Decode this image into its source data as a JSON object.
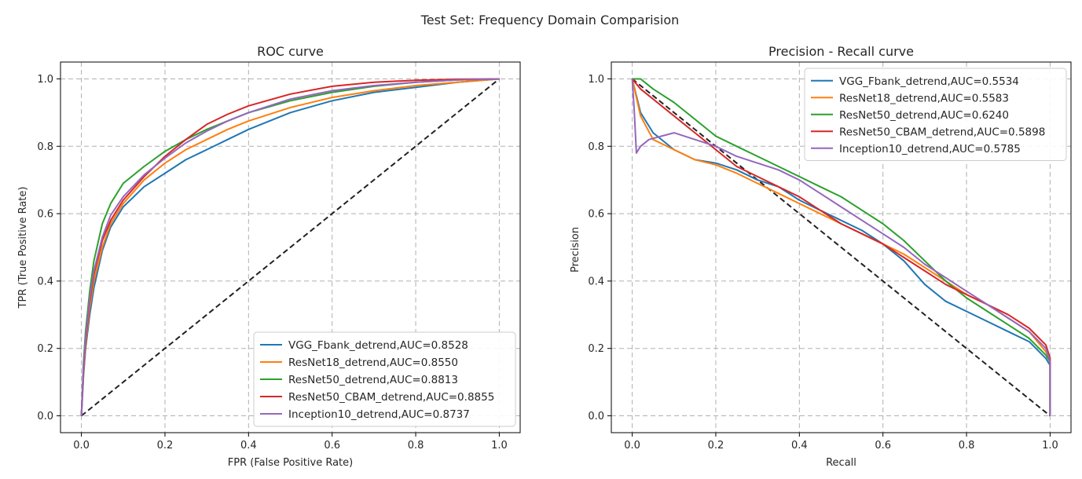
{
  "figure_title": "Test Set: Frequency Domain Comparision",
  "colors": {
    "series": [
      "#1f77b4",
      "#ff7f0e",
      "#2ca02c",
      "#d62728",
      "#9467bd"
    ],
    "grid": "#b0b0b0",
    "diagonal": "#222222",
    "frame": "#000000"
  },
  "chart_data": [
    {
      "type": "line",
      "title": "ROC curve",
      "xlabel": "FPR (False Positive Rate)",
      "ylabel": "TPR (True Positive Rate)",
      "xlim": [
        -0.05,
        1.05
      ],
      "ylim": [
        -0.05,
        1.05
      ],
      "xticks": [
        0.0,
        0.2,
        0.4,
        0.6,
        0.8,
        1.0
      ],
      "xtick_labels": [
        "0.0",
        "0.2",
        "0.4",
        "0.6",
        "0.8",
        "1.0"
      ],
      "yticks": [
        0.0,
        0.2,
        0.4,
        0.6,
        0.8,
        1.0
      ],
      "ytick_labels": [
        "0.0",
        "0.2",
        "0.4",
        "0.6",
        "0.8",
        "1.0"
      ],
      "grid": true,
      "legend_position": "lower-right",
      "reference_line": {
        "x": [
          0,
          1
        ],
        "y": [
          0,
          1
        ],
        "style": "dashed"
      },
      "series": [
        {
          "name": "VGG_Fbank_detrend,AUC=0.8528",
          "x": [
            0,
            0.005,
            0.01,
            0.02,
            0.03,
            0.05,
            0.07,
            0.1,
            0.15,
            0.2,
            0.25,
            0.3,
            0.35,
            0.4,
            0.5,
            0.6,
            0.7,
            0.8,
            0.9,
            1.0
          ],
          "y": [
            0,
            0.12,
            0.2,
            0.3,
            0.38,
            0.49,
            0.56,
            0.62,
            0.68,
            0.72,
            0.76,
            0.79,
            0.82,
            0.85,
            0.9,
            0.935,
            0.96,
            0.975,
            0.99,
            1.0
          ]
        },
        {
          "name": "ResNet18_detrend,AUC=0.8550",
          "x": [
            0,
            0.005,
            0.01,
            0.02,
            0.03,
            0.05,
            0.07,
            0.1,
            0.15,
            0.2,
            0.25,
            0.3,
            0.35,
            0.4,
            0.5,
            0.6,
            0.7,
            0.8,
            0.9,
            1.0
          ],
          "y": [
            0,
            0.13,
            0.21,
            0.32,
            0.4,
            0.5,
            0.57,
            0.63,
            0.7,
            0.75,
            0.79,
            0.82,
            0.85,
            0.875,
            0.915,
            0.945,
            0.965,
            0.98,
            0.99,
            1.0
          ]
        },
        {
          "name": "ResNet50_detrend,AUC=0.8813",
          "x": [
            0,
            0.005,
            0.01,
            0.02,
            0.03,
            0.05,
            0.07,
            0.1,
            0.15,
            0.2,
            0.25,
            0.3,
            0.35,
            0.4,
            0.5,
            0.6,
            0.7,
            0.8,
            0.9,
            1.0
          ],
          "y": [
            0,
            0.16,
            0.25,
            0.37,
            0.46,
            0.57,
            0.63,
            0.69,
            0.74,
            0.785,
            0.82,
            0.85,
            0.875,
            0.9,
            0.935,
            0.96,
            0.978,
            0.99,
            0.997,
            1.0
          ]
        },
        {
          "name": "ResNet50_CBAM_detrend,AUC=0.8855",
          "x": [
            0,
            0.005,
            0.01,
            0.02,
            0.03,
            0.05,
            0.07,
            0.1,
            0.15,
            0.2,
            0.25,
            0.3,
            0.35,
            0.4,
            0.5,
            0.6,
            0.7,
            0.8,
            0.9,
            1.0
          ],
          "y": [
            0,
            0.14,
            0.22,
            0.34,
            0.42,
            0.52,
            0.58,
            0.64,
            0.71,
            0.77,
            0.82,
            0.865,
            0.895,
            0.92,
            0.955,
            0.978,
            0.99,
            0.996,
            0.999,
            1.0
          ]
        },
        {
          "name": "Inception10_detrend,AUC=0.8737",
          "x": [
            0,
            0.005,
            0.01,
            0.02,
            0.03,
            0.05,
            0.07,
            0.1,
            0.15,
            0.2,
            0.25,
            0.3,
            0.35,
            0.4,
            0.5,
            0.6,
            0.7,
            0.8,
            0.9,
            1.0
          ],
          "y": [
            0,
            0.15,
            0.23,
            0.35,
            0.43,
            0.53,
            0.595,
            0.65,
            0.715,
            0.765,
            0.81,
            0.845,
            0.875,
            0.9,
            0.94,
            0.965,
            0.98,
            0.99,
            0.997,
            1.0
          ]
        }
      ]
    },
    {
      "type": "line",
      "title": "Precision - Recall curve",
      "xlabel": "Recall",
      "ylabel": "Precision",
      "xlim": [
        -0.05,
        1.05
      ],
      "ylim": [
        -0.05,
        1.05
      ],
      "xticks": [
        0.0,
        0.2,
        0.4,
        0.6,
        0.8,
        1.0
      ],
      "xtick_labels": [
        "0.0",
        "0.2",
        "0.4",
        "0.6",
        "0.8",
        "1.0"
      ],
      "yticks": [
        0.0,
        0.2,
        0.4,
        0.6,
        0.8,
        1.0
      ],
      "ytick_labels": [
        "0.0",
        "0.2",
        "0.4",
        "0.6",
        "0.8",
        "1.0"
      ],
      "grid": true,
      "legend_position": "upper-right",
      "reference_line": {
        "x": [
          0,
          1
        ],
        "y": [
          1,
          0
        ],
        "style": "dashed"
      },
      "series": [
        {
          "name": "VGG_Fbank_detrend,AUC=0.5534",
          "x": [
            0,
            0.02,
            0.05,
            0.1,
            0.15,
            0.2,
            0.25,
            0.3,
            0.35,
            0.4,
            0.45,
            0.5,
            0.55,
            0.6,
            0.65,
            0.7,
            0.75,
            0.8,
            0.85,
            0.9,
            0.95,
            0.99,
            1.0,
            1.0
          ],
          "y": [
            1.0,
            0.9,
            0.84,
            0.79,
            0.76,
            0.75,
            0.73,
            0.7,
            0.68,
            0.64,
            0.61,
            0.58,
            0.55,
            0.51,
            0.46,
            0.39,
            0.34,
            0.31,
            0.28,
            0.25,
            0.22,
            0.17,
            0.15,
            0.0
          ]
        },
        {
          "name": "ResNet18_detrend,AUC=0.5583",
          "x": [
            0,
            0.02,
            0.05,
            0.1,
            0.15,
            0.2,
            0.25,
            0.3,
            0.35,
            0.4,
            0.45,
            0.5,
            0.55,
            0.6,
            0.65,
            0.7,
            0.75,
            0.8,
            0.85,
            0.9,
            0.95,
            0.99,
            1.0,
            1.0
          ],
          "y": [
            1.0,
            0.89,
            0.82,
            0.79,
            0.76,
            0.745,
            0.72,
            0.69,
            0.66,
            0.63,
            0.6,
            0.57,
            0.54,
            0.51,
            0.48,
            0.44,
            0.4,
            0.36,
            0.33,
            0.29,
            0.25,
            0.19,
            0.16,
            0.0
          ]
        },
        {
          "name": "ResNet50_detrend,AUC=0.6240",
          "x": [
            0,
            0.02,
            0.05,
            0.1,
            0.15,
            0.2,
            0.25,
            0.3,
            0.35,
            0.4,
            0.45,
            0.5,
            0.55,
            0.6,
            0.65,
            0.7,
            0.75,
            0.8,
            0.85,
            0.9,
            0.95,
            0.99,
            1.0,
            1.0
          ],
          "y": [
            1.0,
            1.0,
            0.97,
            0.93,
            0.88,
            0.83,
            0.8,
            0.77,
            0.74,
            0.71,
            0.68,
            0.65,
            0.61,
            0.57,
            0.52,
            0.46,
            0.4,
            0.35,
            0.31,
            0.27,
            0.23,
            0.18,
            0.16,
            0.0
          ]
        },
        {
          "name": "ResNet50_CBAM_detrend,AUC=0.5898",
          "x": [
            0,
            0.02,
            0.05,
            0.1,
            0.15,
            0.2,
            0.25,
            0.3,
            0.35,
            0.4,
            0.45,
            0.5,
            0.55,
            0.6,
            0.65,
            0.7,
            0.75,
            0.8,
            0.85,
            0.9,
            0.95,
            0.99,
            1.0,
            1.0
          ],
          "y": [
            1.0,
            0.97,
            0.94,
            0.89,
            0.84,
            0.79,
            0.74,
            0.71,
            0.68,
            0.65,
            0.61,
            0.57,
            0.54,
            0.51,
            0.47,
            0.43,
            0.39,
            0.36,
            0.33,
            0.3,
            0.26,
            0.21,
            0.17,
            0.0
          ]
        },
        {
          "name": "Inception10_detrend,AUC=0.5785",
          "x": [
            0,
            0.005,
            0.01,
            0.02,
            0.04,
            0.07,
            0.1,
            0.15,
            0.2,
            0.25,
            0.3,
            0.35,
            0.4,
            0.45,
            0.5,
            0.55,
            0.6,
            0.65,
            0.7,
            0.75,
            0.8,
            0.85,
            0.9,
            0.95,
            0.99,
            1.0,
            1.0
          ],
          "y": [
            1.0,
            0.9,
            0.78,
            0.8,
            0.82,
            0.83,
            0.84,
            0.82,
            0.8,
            0.77,
            0.75,
            0.73,
            0.7,
            0.66,
            0.62,
            0.58,
            0.54,
            0.5,
            0.45,
            0.41,
            0.37,
            0.33,
            0.29,
            0.25,
            0.2,
            0.16,
            0.0
          ]
        }
      ]
    }
  ]
}
